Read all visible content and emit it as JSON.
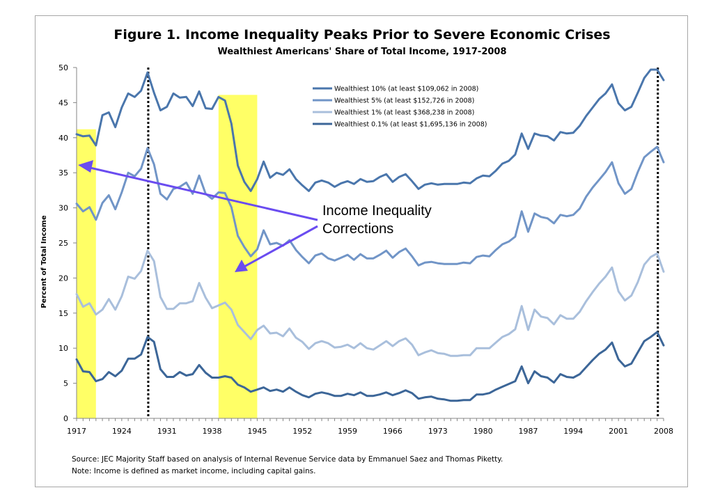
{
  "chart_data": {
    "type": "line",
    "title": "Figure 1. Income Inequality Peaks Prior to Severe Economic Crises",
    "subtitle": "Wealthiest Americans' Share of Total Income, 1917-2008",
    "xlabel": "",
    "ylabel": "Percent of Total Income",
    "ylim": [
      0,
      50
    ],
    "yticks": [
      "0",
      "5",
      "10",
      "15",
      "20",
      "25",
      "30",
      "35",
      "40",
      "45",
      "50"
    ],
    "xticks": [
      "1917",
      "1924",
      "1931",
      "1938",
      "1945",
      "1952",
      "1959",
      "1966",
      "1973",
      "1980",
      "1987",
      "1994",
      "2001",
      "2008"
    ],
    "x_start": 1917,
    "x_end": 2008,
    "legend_placement": "top-center",
    "series": [
      {
        "name": "Wealthiest 10% (at least $109,062 in 2008)",
        "color": "#4a76ac",
        "values": [
          40.5,
          40.2,
          40.3,
          38.9,
          43.2,
          43.6,
          41.5,
          44.3,
          46.3,
          45.8,
          46.7,
          49.3,
          46.4,
          43.9,
          44.4,
          46.3,
          45.7,
          45.8,
          44.5,
          46.6,
          44.2,
          44.1,
          45.8,
          45.3,
          42.0,
          36.0,
          33.7,
          32.4,
          34.1,
          36.6,
          34.3,
          35.0,
          34.7,
          35.5,
          34.1,
          33.2,
          32.4,
          33.6,
          33.9,
          33.6,
          33.0,
          33.5,
          33.8,
          33.4,
          34.1,
          33.7,
          33.8,
          34.4,
          34.8,
          33.7,
          34.4,
          34.8,
          33.8,
          32.7,
          33.3,
          33.5,
          33.3,
          33.4,
          33.4,
          33.4,
          33.6,
          33.5,
          34.2,
          34.6,
          34.5,
          35.3,
          36.3,
          36.7,
          37.6,
          40.6,
          38.4,
          40.6,
          40.3,
          40.2,
          39.6,
          40.8,
          40.6,
          40.7,
          41.7,
          43.1,
          44.3,
          45.5,
          46.3,
          47.6,
          44.9,
          43.9,
          44.4,
          46.4,
          48.5,
          49.7,
          49.7,
          48.2
        ]
      },
      {
        "name": "Wealthiest 5% (at least $152,726 in 2008)",
        "color": "#7195c7",
        "values": [
          30.6,
          29.5,
          30.1,
          28.3,
          30.7,
          31.8,
          29.8,
          32.2,
          35.0,
          34.5,
          35.6,
          38.5,
          36.2,
          32.0,
          31.2,
          32.7,
          33.0,
          33.6,
          32.0,
          34.6,
          32.0,
          31.3,
          32.2,
          32.1,
          30.1,
          26.0,
          24.4,
          23.1,
          24.1,
          26.8,
          24.8,
          25.0,
          24.6,
          25.4,
          24.0,
          23.0,
          22.1,
          23.2,
          23.5,
          22.8,
          22.5,
          22.9,
          23.3,
          22.6,
          23.4,
          22.8,
          22.8,
          23.3,
          23.9,
          22.9,
          23.7,
          24.2,
          23.1,
          21.8,
          22.2,
          22.3,
          22.1,
          22.0,
          22.0,
          22.0,
          22.2,
          22.1,
          23.0,
          23.2,
          23.1,
          24.0,
          24.8,
          25.2,
          25.9,
          29.5,
          26.6,
          29.2,
          28.7,
          28.5,
          27.8,
          29.0,
          28.8,
          29.0,
          29.9,
          31.6,
          32.9,
          34.0,
          35.1,
          36.5,
          33.5,
          32.0,
          32.7,
          35.1,
          37.2,
          38.0,
          38.7,
          36.5
        ]
      },
      {
        "name": "Wealthiest 1% (at least $368,238 in 2008)",
        "color": "#a9bfdc",
        "values": [
          17.7,
          15.9,
          16.4,
          14.8,
          15.5,
          17.0,
          15.5,
          17.4,
          20.2,
          19.9,
          21.0,
          23.9,
          22.4,
          17.3,
          15.6,
          15.6,
          16.4,
          16.4,
          16.7,
          19.3,
          17.2,
          15.7,
          16.1,
          16.5,
          15.5,
          13.3,
          12.3,
          11.3,
          12.6,
          13.2,
          12.1,
          12.2,
          11.7,
          12.8,
          11.5,
          10.9,
          9.9,
          10.7,
          11.0,
          10.7,
          10.1,
          10.2,
          10.5,
          10.0,
          10.7,
          10.0,
          9.8,
          10.4,
          11.0,
          10.3,
          11.0,
          11.4,
          10.5,
          9.0,
          9.4,
          9.7,
          9.3,
          9.2,
          8.9,
          8.9,
          9.0,
          9.0,
          10.0,
          10.0,
          10.0,
          10.8,
          11.6,
          12.0,
          12.7,
          16.0,
          12.6,
          15.5,
          14.5,
          14.3,
          13.4,
          14.7,
          14.2,
          14.2,
          15.2,
          16.7,
          18.0,
          19.2,
          20.2,
          21.5,
          18.1,
          16.8,
          17.5,
          19.4,
          21.9,
          23.0,
          23.5,
          20.9
        ]
      },
      {
        "name": "Wealthiest 0.1% (at least $1,695,136 in 2008)",
        "color": "#3c6698",
        "values": [
          8.4,
          6.7,
          6.6,
          5.3,
          5.6,
          6.6,
          6.0,
          6.8,
          8.5,
          8.5,
          9.1,
          11.6,
          10.9,
          7.0,
          5.9,
          5.9,
          6.6,
          6.1,
          6.3,
          7.6,
          6.5,
          5.8,
          5.8,
          6.0,
          5.8,
          4.8,
          4.4,
          3.8,
          4.1,
          4.4,
          3.9,
          4.1,
          3.8,
          4.4,
          3.8,
          3.3,
          3.0,
          3.5,
          3.7,
          3.5,
          3.2,
          3.2,
          3.5,
          3.3,
          3.7,
          3.2,
          3.2,
          3.4,
          3.7,
          3.3,
          3.6,
          4.0,
          3.6,
          2.8,
          3.0,
          3.1,
          2.8,
          2.7,
          2.5,
          2.5,
          2.6,
          2.6,
          3.4,
          3.4,
          3.6,
          4.1,
          4.5,
          4.9,
          5.3,
          7.4,
          5.0,
          6.7,
          6.0,
          5.8,
          5.1,
          6.3,
          5.9,
          5.8,
          6.3,
          7.3,
          8.3,
          9.2,
          9.8,
          10.8,
          8.4,
          7.4,
          7.8,
          9.4,
          11.0,
          11.6,
          12.3,
          10.4
        ]
      }
    ],
    "highlight_periods": [
      [
        1917,
        1920
      ],
      [
        1939,
        1945
      ]
    ],
    "peak_lines": [
      1928,
      2007
    ],
    "annotation": {
      "line1": "Income Inequality",
      "line2": "Corrections"
    }
  },
  "footer": {
    "source": "Source: JEC Majority Staff based on analysis of Internal Revenue Service data by Emmanuel Saez and Thomas Piketty.",
    "note": "Note: Income is defined as market income, including capital gains."
  },
  "colors": {
    "highlight": "#ffff66",
    "arrow": "#6a4cf0",
    "axis": "#868686"
  }
}
